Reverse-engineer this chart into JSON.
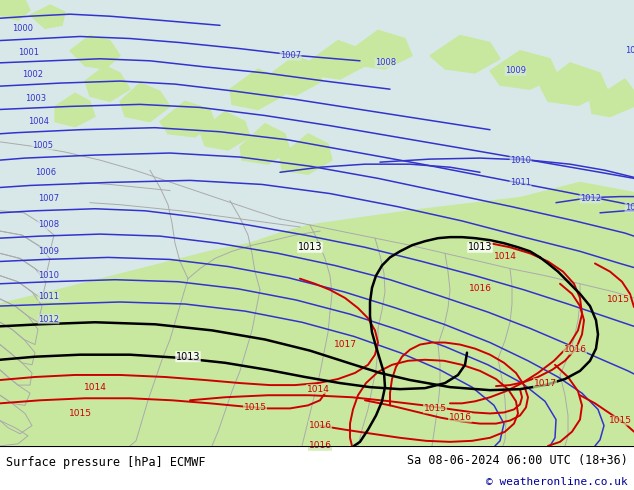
{
  "title_left": "Surface pressure [hPa] ECMWF",
  "title_right": "Sa 08-06-2024 06:00 UTC (18+36)",
  "copyright": "© weatheronline.co.uk",
  "sea_color": "#d8e8e8",
  "land_color": "#c8e8a0",
  "fig_width": 6.34,
  "fig_height": 4.9,
  "dpi": 100,
  "bottom_bar_color": "#ffffff",
  "blue_color": "#3333cc",
  "black_color": "#000000",
  "red_color": "#cc0000",
  "border_color": "#aaaaaa"
}
